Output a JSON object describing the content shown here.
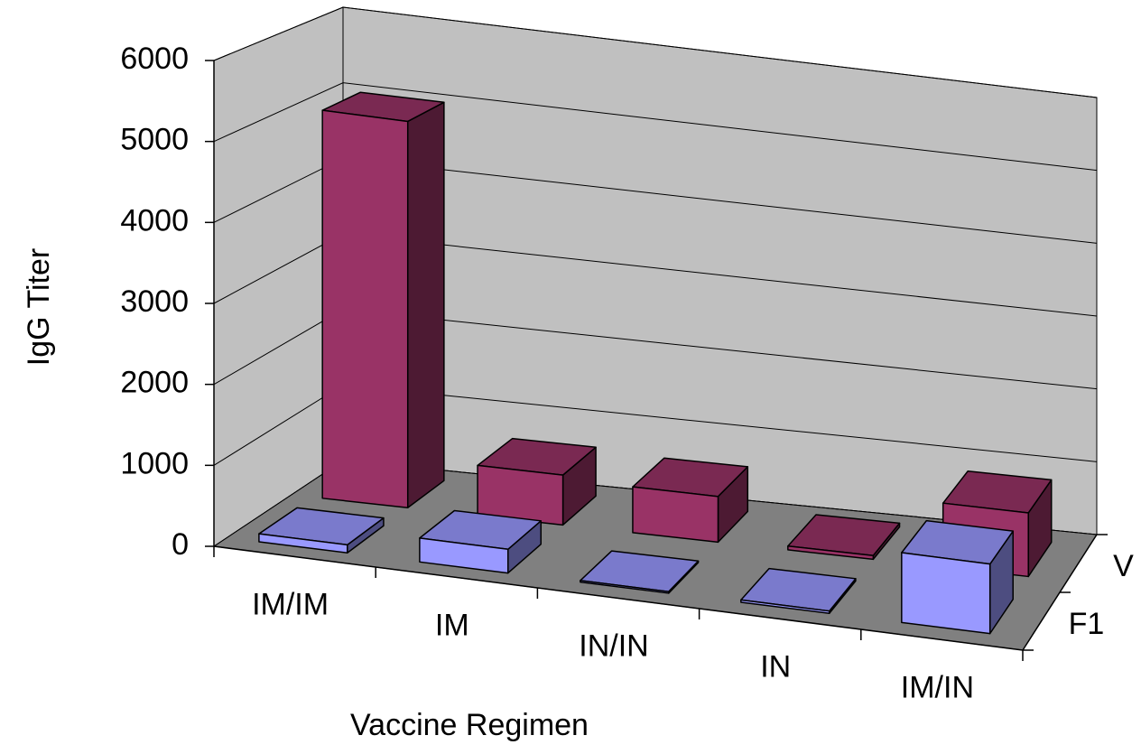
{
  "chart_data": {
    "type": "bar3d",
    "y_label": "IgG Titer",
    "x_label": "Vaccine Regimen",
    "categories": [
      "IM/IM",
      "IM",
      "IN/IN",
      "IN",
      "IM/IN"
    ],
    "series": [
      {
        "name": "F1",
        "color": "#9999ff",
        "values": [
          100,
          300,
          20,
          30,
          900
        ]
      },
      {
        "name": "V",
        "color": "#993366",
        "values": [
          5000,
          650,
          600,
          50,
          850
        ]
      }
    ],
    "ylim": [
      0,
      6000
    ],
    "yticks": [
      0,
      1000,
      2000,
      3000,
      4000,
      5000,
      6000
    ],
    "grid": true
  }
}
